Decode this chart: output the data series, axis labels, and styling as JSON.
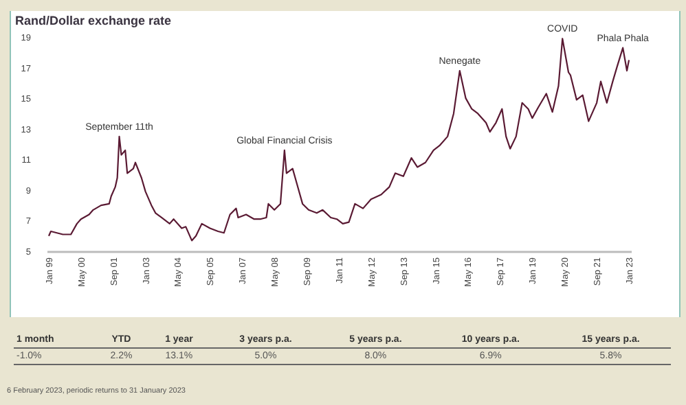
{
  "chart_data": {
    "type": "line",
    "title": "Rand/Dollar exchange rate",
    "x": [
      "1999-01",
      "1999-02",
      "1999-08",
      "1999-12",
      "2000-03",
      "2000-05",
      "2000-09",
      "2000-11",
      "2001-03",
      "2001-07",
      "2001-08",
      "2001-10",
      "2001-11",
      "2001-12",
      "2002-01",
      "2002-03",
      "2002-04",
      "2002-07",
      "2002-08",
      "2002-11",
      "2003-01",
      "2003-04",
      "2003-06",
      "2003-09",
      "2004-01",
      "2004-03",
      "2004-07",
      "2004-09",
      "2004-12",
      "2005-02",
      "2005-05",
      "2005-09",
      "2006-01",
      "2006-04",
      "2006-07",
      "2006-10",
      "2006-11",
      "2007-03",
      "2007-07",
      "2007-10",
      "2008-01",
      "2008-02",
      "2008-05",
      "2008-08",
      "2008-10",
      "2008-11",
      "2009-02",
      "2009-04",
      "2009-07",
      "2009-10",
      "2010-02",
      "2010-05",
      "2010-09",
      "2010-12",
      "2011-03",
      "2011-06",
      "2011-09",
      "2012-01",
      "2012-05",
      "2012-10",
      "2013-02",
      "2013-05",
      "2013-09",
      "2014-01",
      "2014-04",
      "2014-08",
      "2014-12",
      "2015-03",
      "2015-07",
      "2015-10",
      "2016-01",
      "2016-04",
      "2016-07",
      "2016-10",
      "2017-02",
      "2017-04",
      "2017-07",
      "2017-10",
      "2017-12",
      "2018-02",
      "2018-05",
      "2018-08",
      "2018-11",
      "2019-01",
      "2019-04",
      "2019-08",
      "2019-11",
      "2020-02",
      "2020-04",
      "2020-07",
      "2020-08",
      "2020-11",
      "2021-02",
      "2021-05",
      "2021-09",
      "2021-11",
      "2022-02",
      "2022-05",
      "2022-07",
      "2022-10",
      "2022-12",
      "2023-01"
    ],
    "series": [
      {
        "color": "#5a1a33",
        "values": [
          6.0,
          6.3,
          6.1,
          6.1,
          6.8,
          7.1,
          7.4,
          7.7,
          8.0,
          8.1,
          8.6,
          9.2,
          9.8,
          12.5,
          11.3,
          11.6,
          10.1,
          10.4,
          10.8,
          9.8,
          8.9,
          8.0,
          7.5,
          7.2,
          6.8,
          7.1,
          6.5,
          6.6,
          5.7,
          6.0,
          6.8,
          6.5,
          6.3,
          6.2,
          7.4,
          7.8,
          7.2,
          7.4,
          7.1,
          7.1,
          7.2,
          8.1,
          7.7,
          8.1,
          11.6,
          10.1,
          10.4,
          9.5,
          8.1,
          7.7,
          7.5,
          7.7,
          7.2,
          7.1,
          6.8,
          6.9,
          8.1,
          7.8,
          8.4,
          8.7,
          9.2,
          10.1,
          9.9,
          11.1,
          10.5,
          10.8,
          11.6,
          11.9,
          12.5,
          14.0,
          16.8,
          15.0,
          14.3,
          14.0,
          13.4,
          12.8,
          13.4,
          14.3,
          12.5,
          11.7,
          12.5,
          14.7,
          14.3,
          13.7,
          14.4,
          15.3,
          14.1,
          15.8,
          18.9,
          16.7,
          16.5,
          14.9,
          15.2,
          13.5,
          14.7,
          16.1,
          14.7,
          16.1,
          17.0,
          18.3,
          16.8,
          17.5
        ]
      }
    ],
    "xlim": [
      "1998-12",
      "2023-02"
    ],
    "xticks": [
      {
        "value": "1999-01",
        "label": "Jan 99"
      },
      {
        "value": "2000-05",
        "label": "May 00"
      },
      {
        "value": "2001-09",
        "label": "Sep 01"
      },
      {
        "value": "2003-01",
        "label": "Jan 03"
      },
      {
        "value": "2004-05",
        "label": "May 04"
      },
      {
        "value": "2005-09",
        "label": "Sep 05"
      },
      {
        "value": "2007-01",
        "label": "Jan 07"
      },
      {
        "value": "2008-05",
        "label": "May 08"
      },
      {
        "value": "2009-09",
        "label": "Sep 09"
      },
      {
        "value": "2011-01",
        "label": "Jan 11"
      },
      {
        "value": "2012-05",
        "label": "May 12"
      },
      {
        "value": "2013-09",
        "label": "Sep 13"
      },
      {
        "value": "2015-01",
        "label": "Jan 15"
      },
      {
        "value": "2016-05",
        "label": "May 16"
      },
      {
        "value": "2017-09",
        "label": "Sep 17"
      },
      {
        "value": "2019-01",
        "label": "Jan 19"
      },
      {
        "value": "2020-05",
        "label": "May 20"
      },
      {
        "value": "2021-09",
        "label": "Sep 21"
      },
      {
        "value": "2023-01",
        "label": "Jan 23"
      }
    ],
    "ylim": [
      5,
      19
    ],
    "yticks": [
      5,
      7,
      9,
      11,
      13,
      15,
      17,
      19
    ],
    "annotations": [
      {
        "text": "September 11th",
        "x": "2001-12",
        "y": 12.5
      },
      {
        "text": "Global Financial Crisis",
        "x": "2008-10",
        "y": 11.6
      },
      {
        "text": "Nenegate",
        "x": "2016-01",
        "y": 16.8
      },
      {
        "text": "COVID",
        "x": "2020-04",
        "y": 18.9
      },
      {
        "text": "Phala Phala",
        "x": "2022-10",
        "y": 18.3
      },
      "1 month",
      "YTD",
      "1 year",
      "3 years p.a.",
      "5 years p.a.",
      "10 years p.a.",
      "15 years p.a.",
      "-1.0%",
      "2.2%",
      "13.1%",
      "5.0%",
      "8.0%",
      "6.9%",
      "5.8%",
      "6 February 2023, periodic returns to 31 January 2023"
    ]
  }
}
